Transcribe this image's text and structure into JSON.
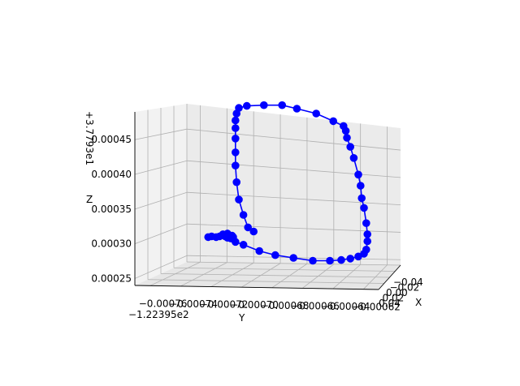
{
  "chart_data": {
    "type": "scatter",
    "projection": "3d",
    "marker_color": "#0000ff",
    "line_color": "#0000ff",
    "xlabel": "X",
    "ylabel": "Y",
    "zlabel": "Z",
    "x_ticks": [
      "−0.04",
      "−0.02",
      "0.00",
      "0.02",
      "0.04"
    ],
    "y_ticks": [
      "−0.00076",
      "−0.00074",
      "−0.00072",
      "−0.00070",
      "−0.00068",
      "−0.00066",
      "−0.00064",
      "−0.00062"
    ],
    "y_offset": "−1.22395e2",
    "z_ticks": [
      "0.00025",
      "0.00030",
      "0.00035",
      "0.00040",
      "0.00045"
    ],
    "z_offset": "+3.7793e1",
    "y_range": [
      -0.00077,
      -0.00061
    ],
    "z_range": [
      0.00024,
      0.00049
    ],
    "grid": true,
    "series": [
      {
        "y": [
          -0.000757,
          -0.000754,
          -0.00075,
          -0.000747,
          -0.000744,
          -0.00074,
          -0.000736,
          -0.000735,
          -0.000737,
          -0.00074,
          -0.000742,
          -0.00074,
          -0.000736,
          -0.000733,
          -0.000726,
          -0.000712,
          -0.000698,
          -0.000682,
          -0.000665,
          -0.00065,
          -0.00064,
          -0.000632,
          -0.000625,
          -0.00062,
          -0.000618,
          -0.000617,
          -0.000617,
          -0.000618,
          -0.00062,
          -0.000622,
          -0.000623,
          -0.000625,
          -0.000629,
          -0.000632,
          -0.000635,
          -0.000636,
          -0.000638,
          -0.000647,
          -0.000662,
          -0.000679,
          -0.000692,
          -0.000708,
          -0.000723,
          -0.00073,
          -0.000732,
          -0.000733,
          -0.000733,
          -0.000733,
          -0.000733,
          -0.000733,
          -0.000732,
          -0.00073,
          -0.000726,
          -0.000722,
          -0.000717
        ],
        "z": [
          0.000298,
          0.000299,
          0.000298,
          0.000299,
          0.000302,
          0.000303,
          0.0003,
          0.000298,
          0.000296,
          0.000297,
          0.000299,
          0.000303,
          0.000297,
          0.000291,
          0.000287,
          0.000278,
          0.000272,
          0.000268,
          0.000264,
          0.000264,
          0.000265,
          0.000267,
          0.00027,
          0.000274,
          0.00028,
          0.000292,
          0.000302,
          0.000318,
          0.00034,
          0.000354,
          0.000372,
          0.000388,
          0.000412,
          0.000428,
          0.000441,
          0.000451,
          0.000458,
          0.000465,
          0.000476,
          0.000483,
          0.000488,
          0.000488,
          0.000487,
          0.000484,
          0.000476,
          0.000466,
          0.000455,
          0.00044,
          0.00042,
          0.000401,
          0.000377,
          0.000352,
          0.00033,
          0.000312,
          0.000306
        ]
      }
    ]
  }
}
